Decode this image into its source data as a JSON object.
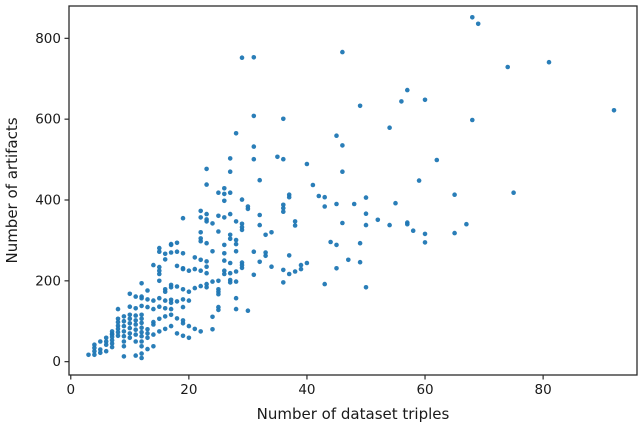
{
  "chart_data": {
    "type": "scatter",
    "title": "",
    "xlabel": "Number of dataset triples",
    "ylabel": "Number of artifacts",
    "xlim": [
      -0.3,
      95.9
    ],
    "ylim": [
      -33,
      880
    ],
    "x_ticks": [
      0,
      20,
      40,
      60,
      80
    ],
    "y_ticks": [
      0,
      200,
      400,
      600,
      800
    ],
    "grid": false,
    "legend": null,
    "marker_color": "#1f77b4",
    "axis_color": "#2b2b2b",
    "points": [
      [
        3,
        17
      ],
      [
        4,
        42
      ],
      [
        4,
        34
      ],
      [
        4,
        26
      ],
      [
        4,
        17
      ],
      [
        5,
        50
      ],
      [
        5,
        30
      ],
      [
        5,
        22
      ],
      [
        6,
        59
      ],
      [
        6,
        50
      ],
      [
        6,
        42
      ],
      [
        6,
        26
      ],
      [
        7,
        75
      ],
      [
        7,
        69
      ],
      [
        7,
        67
      ],
      [
        7,
        61
      ],
      [
        7,
        53
      ],
      [
        7,
        45
      ],
      [
        7,
        36
      ],
      [
        8,
        130
      ],
      [
        8,
        106
      ],
      [
        8,
        98
      ],
      [
        8,
        89
      ],
      [
        8,
        81
      ],
      [
        8,
        73
      ],
      [
        8,
        64
      ],
      [
        9,
        112
      ],
      [
        9,
        100
      ],
      [
        9,
        88
      ],
      [
        9,
        75
      ],
      [
        9,
        63
      ],
      [
        9,
        50
      ],
      [
        9,
        38
      ],
      [
        9,
        13
      ],
      [
        10,
        168
      ],
      [
        10,
        136
      ],
      [
        10,
        116
      ],
      [
        10,
        106
      ],
      [
        10,
        95
      ],
      [
        10,
        83
      ],
      [
        10,
        70
      ],
      [
        10,
        59
      ],
      [
        11,
        161
      ],
      [
        11,
        132
      ],
      [
        11,
        114
      ],
      [
        11,
        102
      ],
      [
        11,
        92
      ],
      [
        11,
        79
      ],
      [
        11,
        67
      ],
      [
        11,
        50
      ],
      [
        11,
        15
      ],
      [
        12,
        194
      ],
      [
        12,
        161
      ],
      [
        12,
        157
      ],
      [
        12,
        138
      ],
      [
        12,
        116
      ],
      [
        12,
        106
      ],
      [
        12,
        96
      ],
      [
        12,
        84
      ],
      [
        12,
        73
      ],
      [
        12,
        63
      ],
      [
        12,
        50
      ],
      [
        12,
        38
      ],
      [
        12,
        20
      ],
      [
        12,
        9
      ],
      [
        13,
        176
      ],
      [
        13,
        154
      ],
      [
        13,
        135
      ],
      [
        13,
        80
      ],
      [
        13,
        70
      ],
      [
        13,
        59
      ],
      [
        13,
        31
      ],
      [
        14,
        239
      ],
      [
        14,
        151
      ],
      [
        14,
        130
      ],
      [
        14,
        98
      ],
      [
        14,
        92
      ],
      [
        14,
        67
      ],
      [
        14,
        38
      ],
      [
        15,
        281
      ],
      [
        15,
        272
      ],
      [
        15,
        234
      ],
      [
        15,
        225
      ],
      [
        15,
        217
      ],
      [
        15,
        200
      ],
      [
        15,
        157
      ],
      [
        15,
        136
      ],
      [
        15,
        106
      ],
      [
        15,
        75
      ],
      [
        16,
        267
      ],
      [
        16,
        253
      ],
      [
        16,
        179
      ],
      [
        16,
        173
      ],
      [
        16,
        151
      ],
      [
        16,
        132
      ],
      [
        16,
        112
      ],
      [
        16,
        81
      ],
      [
        17,
        291
      ],
      [
        17,
        289
      ],
      [
        17,
        270
      ],
      [
        17,
        190
      ],
      [
        17,
        184
      ],
      [
        17,
        153
      ],
      [
        17,
        146
      ],
      [
        17,
        130
      ],
      [
        17,
        116
      ],
      [
        17,
        88
      ],
      [
        18,
        294
      ],
      [
        18,
        272
      ],
      [
        18,
        237
      ],
      [
        18,
        186
      ],
      [
        18,
        149
      ],
      [
        18,
        107
      ],
      [
        18,
        70
      ],
      [
        19,
        355
      ],
      [
        19,
        268
      ],
      [
        19,
        231
      ],
      [
        19,
        229
      ],
      [
        19,
        179
      ],
      [
        19,
        154
      ],
      [
        19,
        135
      ],
      [
        19,
        102
      ],
      [
        19,
        95
      ],
      [
        19,
        64
      ],
      [
        20,
        225
      ],
      [
        20,
        173
      ],
      [
        20,
        151
      ],
      [
        20,
        88
      ],
      [
        20,
        59
      ],
      [
        21,
        258
      ],
      [
        21,
        229
      ],
      [
        21,
        182
      ],
      [
        21,
        81
      ],
      [
        22,
        373
      ],
      [
        22,
        357
      ],
      [
        22,
        320
      ],
      [
        22,
        305
      ],
      [
        22,
        298
      ],
      [
        22,
        252
      ],
      [
        22,
        225
      ],
      [
        22,
        187
      ],
      [
        22,
        75
      ],
      [
        23,
        477
      ],
      [
        23,
        438
      ],
      [
        23,
        365
      ],
      [
        23,
        352
      ],
      [
        23,
        347
      ],
      [
        23,
        293
      ],
      [
        23,
        248
      ],
      [
        23,
        235
      ],
      [
        23,
        219
      ],
      [
        23,
        192
      ],
      [
        23,
        184
      ],
      [
        24,
        342
      ],
      [
        24,
        273
      ],
      [
        24,
        198
      ],
      [
        24,
        111
      ],
      [
        24,
        80
      ],
      [
        25,
        418
      ],
      [
        25,
        361
      ],
      [
        25,
        322
      ],
      [
        25,
        200
      ],
      [
        25,
        179
      ],
      [
        25,
        173
      ],
      [
        25,
        167
      ],
      [
        25,
        135
      ],
      [
        25,
        128
      ],
      [
        26,
        429
      ],
      [
        26,
        415
      ],
      [
        26,
        398
      ],
      [
        26,
        357
      ],
      [
        26,
        289
      ],
      [
        26,
        268
      ],
      [
        26,
        250
      ],
      [
        26,
        225
      ],
      [
        26,
        217
      ],
      [
        27,
        503
      ],
      [
        27,
        470
      ],
      [
        27,
        418
      ],
      [
        27,
        365
      ],
      [
        27,
        314
      ],
      [
        27,
        304
      ],
      [
        27,
        244
      ],
      [
        27,
        219
      ],
      [
        27,
        202
      ],
      [
        27,
        196
      ],
      [
        28,
        565
      ],
      [
        28,
        347
      ],
      [
        28,
        301
      ],
      [
        28,
        291
      ],
      [
        28,
        273
      ],
      [
        28,
        223
      ],
      [
        28,
        198
      ],
      [
        28,
        157
      ],
      [
        28,
        130
      ],
      [
        29,
        752
      ],
      [
        29,
        401
      ],
      [
        29,
        341
      ],
      [
        29,
        333
      ],
      [
        29,
        326
      ],
      [
        29,
        245
      ],
      [
        29,
        239
      ],
      [
        29,
        232
      ],
      [
        30,
        384
      ],
      [
        30,
        378
      ],
      [
        30,
        126
      ],
      [
        31,
        753
      ],
      [
        31,
        608
      ],
      [
        31,
        532
      ],
      [
        31,
        501
      ],
      [
        31,
        272
      ],
      [
        31,
        215
      ],
      [
        32,
        449
      ],
      [
        32,
        363
      ],
      [
        32,
        338
      ],
      [
        32,
        247
      ],
      [
        33,
        314
      ],
      [
        33,
        270
      ],
      [
        33,
        262
      ],
      [
        34,
        320
      ],
      [
        34,
        235
      ],
      [
        35,
        507
      ],
      [
        36,
        601
      ],
      [
        36,
        501
      ],
      [
        36,
        388
      ],
      [
        36,
        380
      ],
      [
        36,
        371
      ],
      [
        36,
        227
      ],
      [
        36,
        196
      ],
      [
        37,
        413
      ],
      [
        37,
        407
      ],
      [
        37,
        263
      ],
      [
        37,
        217
      ],
      [
        38,
        347
      ],
      [
        38,
        337
      ],
      [
        38,
        223
      ],
      [
        39,
        239
      ],
      [
        39,
        229
      ],
      [
        40,
        489
      ],
      [
        40,
        244
      ],
      [
        41,
        437
      ],
      [
        42,
        410
      ],
      [
        43,
        407
      ],
      [
        43,
        384
      ],
      [
        43,
        192
      ],
      [
        44,
        296
      ],
      [
        45,
        559
      ],
      [
        45,
        390
      ],
      [
        45,
        289
      ],
      [
        45,
        231
      ],
      [
        46,
        766
      ],
      [
        46,
        535
      ],
      [
        46,
        470
      ],
      [
        46,
        343
      ],
      [
        47,
        252
      ],
      [
        48,
        390
      ],
      [
        49,
        633
      ],
      [
        49,
        293
      ],
      [
        49,
        246
      ],
      [
        50,
        406
      ],
      [
        50,
        366
      ],
      [
        50,
        338
      ],
      [
        50,
        184
      ],
      [
        52,
        351
      ],
      [
        54,
        579
      ],
      [
        54,
        338
      ],
      [
        55,
        392
      ],
      [
        56,
        644
      ],
      [
        57,
        672
      ],
      [
        57,
        344
      ],
      [
        57,
        340
      ],
      [
        58,
        324
      ],
      [
        59,
        448
      ],
      [
        60,
        648
      ],
      [
        60,
        316
      ],
      [
        60,
        295
      ],
      [
        62,
        499
      ],
      [
        65,
        413
      ],
      [
        65,
        318
      ],
      [
        67,
        340
      ],
      [
        68,
        852
      ],
      [
        68,
        598
      ],
      [
        69,
        836
      ],
      [
        74,
        729
      ],
      [
        75,
        418
      ],
      [
        81,
        741
      ],
      [
        92,
        622
      ]
    ]
  }
}
